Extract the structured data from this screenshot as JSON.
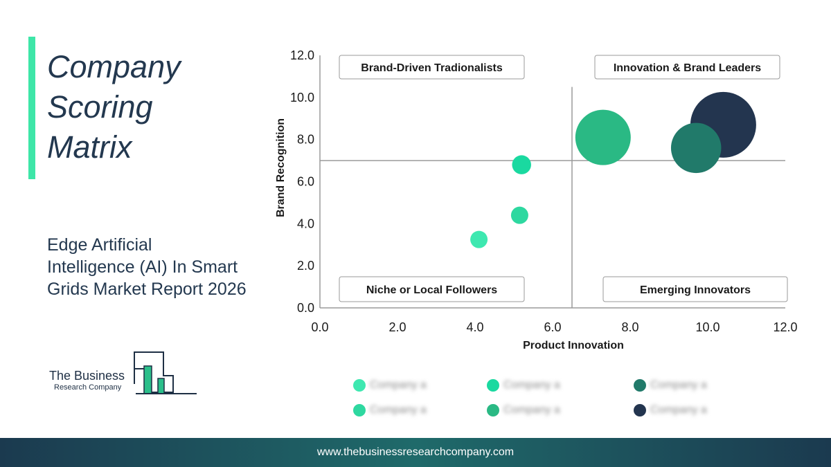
{
  "title_lines": [
    "Company",
    "Scoring",
    "Matrix"
  ],
  "subtitle_lines": [
    "Edge Artificial",
    "Intelligence (AI) In Smart",
    "Grids Market Report 2026"
  ],
  "logo": {
    "line1": "The Business",
    "line2": "Research Company",
    "bar_color": "#2bbf8a"
  },
  "colors": {
    "accent": "#3ee6a8",
    "text": "#23384f"
  },
  "chart_data": {
    "type": "scatter",
    "xlabel": "Product Innovation",
    "ylabel": "Brand Recognition",
    "xlim": [
      0,
      12
    ],
    "ylim": [
      0,
      12
    ],
    "x_ticks": [
      "0.0",
      "2.0",
      "4.0",
      "6.0",
      "8.0",
      "10.0",
      "12.0"
    ],
    "y_ticks": [
      "0.0",
      "2.0",
      "4.0",
      "6.0",
      "8.0",
      "10.0",
      "12.0"
    ],
    "divider_x": 6.5,
    "divider_y": 7.0,
    "quadrants": [
      {
        "label": "Brand-Driven Tradionalists",
        "position": "top-left"
      },
      {
        "label": "Innovation & Brand Leaders",
        "position": "top-right"
      },
      {
        "label": "Niche or Local Followers",
        "position": "bottom-left"
      },
      {
        "label": "Emerging Innovators",
        "position": "bottom-right"
      }
    ],
    "points": [
      {
        "x": 4.1,
        "y": 3.25,
        "size": 1.0,
        "color": "#3ee8b0"
      },
      {
        "x": 5.15,
        "y": 4.4,
        "size": 1.0,
        "color": "#2ed8a0"
      },
      {
        "x": 5.2,
        "y": 6.8,
        "size": 1.1,
        "color": "#1ad9a0"
      },
      {
        "x": 7.3,
        "y": 8.1,
        "size": 3.2,
        "color": "#2ab984"
      },
      {
        "x": 10.4,
        "y": 8.7,
        "size": 3.8,
        "color": "#23354f"
      },
      {
        "x": 9.7,
        "y": 7.6,
        "size": 2.9,
        "color": "#217a6a"
      }
    ],
    "legend_position": "bottom",
    "legend": [
      {
        "label": "Company a",
        "color": "#3ee8b0"
      },
      {
        "label": "Company a",
        "color": "#1ad9a0"
      },
      {
        "label": "Company a",
        "color": "#217a6a"
      },
      {
        "label": "Company a",
        "color": "#2ed8a0"
      },
      {
        "label": "Company a",
        "color": "#2ab984"
      },
      {
        "label": "Company a",
        "color": "#23354f"
      }
    ]
  },
  "footer": {
    "url": "www.thebusinessresearchcompany.com"
  }
}
